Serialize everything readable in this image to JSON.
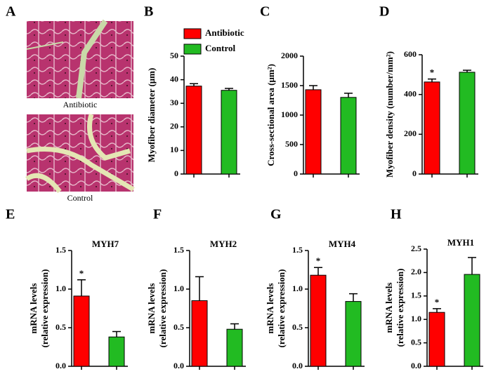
{
  "panel_a": {
    "letter": "A",
    "captions": [
      "Antibiotic",
      "Control"
    ]
  },
  "chart_data": [
    {
      "type": "bar",
      "letter": "B",
      "ylabel": [
        "Myofiber diameter (μm)"
      ],
      "categories": [
        null,
        null
      ],
      "values": [
        37.3,
        35.5
      ],
      "errors": [
        1.0,
        0.8
      ],
      "colors": [
        "#ff0000",
        "#22bb22"
      ],
      "marks": [
        null,
        null
      ],
      "legend": [
        "Antibiotic",
        "Control"
      ],
      "ylim": [
        0,
        50
      ],
      "yticks": [
        0,
        10,
        20,
        30,
        40,
        50
      ]
    },
    {
      "type": "bar",
      "letter": "C",
      "ylabel": [
        "Cross-sectional area (μm²)"
      ],
      "categories": [
        null,
        null
      ],
      "values": [
        1430,
        1300
      ],
      "errors": [
        70,
        70
      ],
      "colors": [
        "#ff0000",
        "#22bb22"
      ],
      "marks": [
        null,
        null
      ],
      "ylim": [
        0,
        2000
      ],
      "yticks": [
        0,
        500,
        1000,
        1500,
        2000
      ]
    },
    {
      "type": "bar",
      "letter": "D",
      "ylabel": [
        "Myofiber density (number/mm²)"
      ],
      "categories": [
        null,
        null
      ],
      "values": [
        463,
        512
      ],
      "errors": [
        15,
        10
      ],
      "colors": [
        "#ff0000",
        "#22bb22"
      ],
      "marks": [
        "*",
        null
      ],
      "ylim": [
        0,
        600
      ],
      "yticks": [
        0,
        200,
        400,
        600
      ]
    },
    {
      "type": "bar",
      "letter": "E",
      "title": "MYH7",
      "ylabel": [
        "mRNA levels",
        "(relative expression)"
      ],
      "categories": [
        null,
        null
      ],
      "values": [
        0.91,
        0.38
      ],
      "errors": [
        0.21,
        0.07
      ],
      "colors": [
        "#ff0000",
        "#22bb22"
      ],
      "marks": [
        "*",
        null
      ],
      "ylim": [
        0,
        1.5
      ],
      "yticks": [
        {
          "value": 0,
          "label": "0.0"
        },
        0.5,
        {
          "value": 1,
          "label": "1.0"
        },
        1.5
      ]
    },
    {
      "type": "bar",
      "letter": "F",
      "title": "MYH2",
      "ylabel": [
        "mRNA levels",
        "(relative expression)"
      ],
      "categories": [
        null,
        null
      ],
      "values": [
        0.85,
        0.48
      ],
      "errors": [
        0.31,
        0.07
      ],
      "colors": [
        "#ff0000",
        "#22bb22"
      ],
      "marks": [
        null,
        null
      ],
      "ylim": [
        0,
        1.5
      ],
      "yticks": [
        {
          "value": 0,
          "label": "0.0"
        },
        0.5,
        {
          "value": 1,
          "label": "1.0"
        },
        1.5
      ]
    },
    {
      "type": "bar",
      "letter": "G",
      "title": "MYH4",
      "ylabel": [
        "mRNA levels",
        "(relative expression)"
      ],
      "categories": [
        null,
        null
      ],
      "values": [
        1.18,
        0.84
      ],
      "errors": [
        0.1,
        0.1
      ],
      "colors": [
        "#ff0000",
        "#22bb22"
      ],
      "marks": [
        "*",
        null
      ],
      "ylim": [
        0,
        1.5
      ],
      "yticks": [
        {
          "value": 0,
          "label": "0.0"
        },
        0.5,
        {
          "value": 1,
          "label": "1.0"
        },
        1.5
      ]
    },
    {
      "type": "bar",
      "letter": "H",
      "title": "MYH1",
      "ylabel": [
        "mRNA levels",
        "(relative expression)"
      ],
      "categories": [
        null,
        null
      ],
      "values": [
        1.15,
        1.96
      ],
      "errors": [
        0.08,
        0.36
      ],
      "colors": [
        "#ff0000",
        "#22bb22"
      ],
      "marks": [
        "*",
        null
      ],
      "ylim": [
        0,
        2.5
      ],
      "yticks": [
        {
          "value": 0,
          "label": "0.0"
        },
        0.5,
        {
          "value": 1,
          "label": "1.0"
        },
        1.5,
        {
          "value": 2,
          "label": "2.0"
        },
        2.5
      ]
    }
  ]
}
